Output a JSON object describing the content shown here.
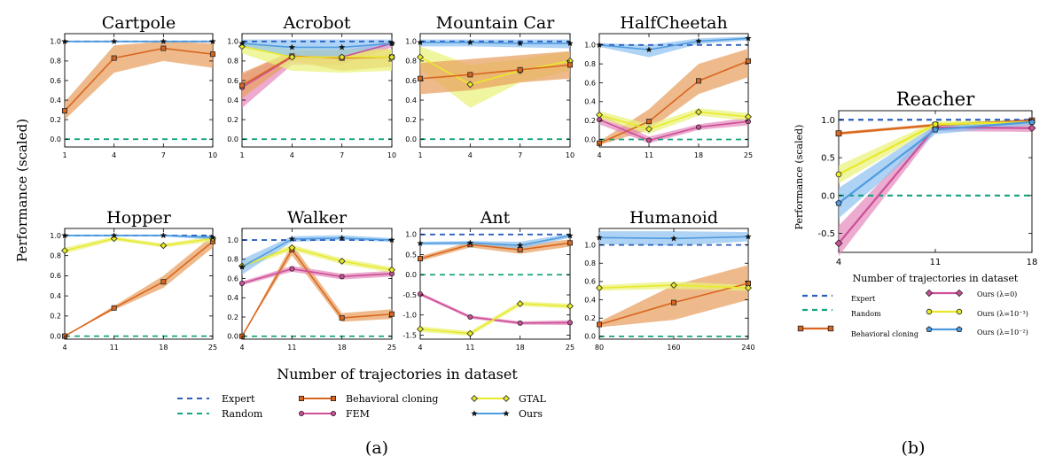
{
  "figure": {
    "panel_a_caption": "(a)",
    "panel_b_caption": "(b)",
    "ylabel_a": "Performance (scaled)",
    "xlabel_a": "Number of trajectories in dataset",
    "ylabel_b": "Performance (scaled)",
    "xlabel_b": "Number of trajectories in dataset"
  },
  "colors": {
    "expert": "#2b5fbf",
    "random": "#16a37f",
    "bc": "#d9661f",
    "bc_fill": "#e8a060",
    "fem": "#cc4f97",
    "fem_fill": "#e58bbd",
    "gtal": "#e9e92a",
    "gtal_fill": "#eaf27a",
    "ours": "#4f9be0",
    "ours_fill": "#8fc2f0",
    "ours_l0": "#cc4f97",
    "ours_l3": "#e9e92a",
    "ours_l2": "#4f9be0"
  },
  "legend_a": [
    {
      "key": "expert",
      "label": "Expert"
    },
    {
      "key": "random",
      "label": "Random"
    },
    {
      "key": "bc",
      "label": "Behavioral cloning"
    },
    {
      "key": "fem",
      "label": "FEM"
    },
    {
      "key": "gtal",
      "label": "GTAL"
    },
    {
      "key": "ours",
      "label": "Ours"
    }
  ],
  "legend_b": [
    {
      "key": "expert",
      "label": "Expert"
    },
    {
      "key": "random",
      "label": "Random"
    },
    {
      "key": "bc",
      "label": "Behavioral cloning"
    },
    {
      "key": "ours_l0",
      "label": "Ours (λ=0)"
    },
    {
      "key": "ours_l3",
      "label": "Ours (λ=10⁻³)"
    },
    {
      "key": "ours_l2",
      "label": "Ours (λ=10⁻²)"
    }
  ],
  "chart_data": [
    {
      "type": "line",
      "title": "Cartpole",
      "x": [
        1,
        4,
        7,
        10
      ],
      "xticks": [
        "1",
        "4",
        "7",
        "10"
      ],
      "ylim": [
        -0.08,
        1.08
      ],
      "yticks": [
        0.0,
        0.2,
        0.4,
        0.6,
        0.8,
        1.0
      ],
      "expert": 1.0,
      "random": 0.0,
      "series": [
        {
          "key": "bc",
          "values": [
            0.29,
            0.83,
            0.93,
            0.87
          ],
          "lo": [
            0.2,
            0.68,
            0.8,
            0.73
          ],
          "hi": [
            0.38,
            0.96,
            1.0,
            0.98
          ],
          "marker": "square"
        },
        {
          "key": "ours",
          "values": [
            1.0,
            1.0,
            1.0,
            1.0
          ],
          "lo": [
            0.99,
            0.99,
            0.99,
            0.99
          ],
          "hi": [
            1.01,
            1.01,
            1.01,
            1.01
          ],
          "marker": "star"
        }
      ]
    },
    {
      "type": "line",
      "title": "Acrobot",
      "x": [
        1,
        4,
        7,
        10
      ],
      "xticks": [
        "1",
        "4",
        "7",
        "10"
      ],
      "ylim": [
        -0.08,
        1.08
      ],
      "yticks": [
        0.0,
        0.2,
        0.4,
        0.6,
        0.8,
        1.0
      ],
      "expert": 1.0,
      "random": 0.0,
      "series": [
        {
          "key": "fem",
          "values": [
            0.53,
            0.84,
            0.84,
            0.98
          ],
          "lo": [
            0.32,
            0.76,
            0.76,
            0.94
          ],
          "hi": [
            0.66,
            0.9,
            0.9,
            1.01
          ],
          "marker": "circle"
        },
        {
          "key": "bc",
          "values": [
            0.55,
            0.85,
            0.83,
            0.84
          ],
          "lo": [
            0.42,
            0.8,
            0.7,
            0.74
          ],
          "hi": [
            0.68,
            0.9,
            0.92,
            0.92
          ],
          "marker": "square"
        },
        {
          "key": "gtal",
          "values": [
            0.95,
            0.84,
            0.84,
            0.84
          ],
          "lo": [
            0.88,
            0.7,
            0.68,
            0.7
          ],
          "hi": [
            1.0,
            0.92,
            0.92,
            0.92
          ],
          "marker": "diamond"
        },
        {
          "key": "ours",
          "values": [
            0.98,
            0.94,
            0.94,
            0.98
          ],
          "lo": [
            0.94,
            0.84,
            0.84,
            0.96
          ],
          "hi": [
            1.02,
            1.02,
            1.02,
            1.02
          ],
          "marker": "star"
        }
      ]
    },
    {
      "type": "line",
      "title": "Mountain Car",
      "x": [
        1,
        4,
        7,
        10
      ],
      "xticks": [
        "1",
        "4",
        "7",
        "10"
      ],
      "ylim": [
        -0.08,
        1.08
      ],
      "yticks": [
        0.0,
        0.2,
        0.4,
        0.6,
        0.8,
        1.0
      ],
      "expert": 1.0,
      "random": 0.0,
      "series": [
        {
          "key": "gtal",
          "values": [
            0.84,
            0.56,
            0.7,
            0.8
          ],
          "lo": [
            0.72,
            0.32,
            0.58,
            0.7
          ],
          "hi": [
            0.95,
            0.76,
            0.82,
            0.9
          ],
          "marker": "diamond"
        },
        {
          "key": "bc",
          "values": [
            0.62,
            0.66,
            0.71,
            0.76
          ],
          "lo": [
            0.46,
            0.5,
            0.58,
            0.62
          ],
          "hi": [
            0.78,
            0.82,
            0.86,
            0.9
          ],
          "marker": "square"
        },
        {
          "key": "ours",
          "values": [
            0.99,
            0.99,
            0.98,
            0.98
          ],
          "lo": [
            0.95,
            0.95,
            0.94,
            0.93
          ],
          "hi": [
            1.02,
            1.02,
            1.02,
            1.02
          ],
          "marker": "star"
        }
      ]
    },
    {
      "type": "line",
      "title": "HalfCheetah",
      "x": [
        4,
        11,
        18,
        25
      ],
      "xticks": [
        "4",
        "11",
        "18",
        "25"
      ],
      "ylim": [
        -0.08,
        1.12
      ],
      "yticks": [
        0.0,
        0.2,
        0.4,
        0.6,
        0.8,
        1.0
      ],
      "expert": 1.0,
      "random": 0.0,
      "series": [
        {
          "key": "bc",
          "values": [
            -0.04,
            0.19,
            0.62,
            0.83
          ],
          "lo": [
            -0.06,
            0.1,
            0.48,
            0.66
          ],
          "hi": [
            -0.02,
            0.32,
            0.8,
            0.96
          ],
          "marker": "square"
        },
        {
          "key": "fem",
          "values": [
            0.21,
            -0.01,
            0.13,
            0.19
          ],
          "lo": [
            0.16,
            -0.04,
            0.1,
            0.15
          ],
          "hi": [
            0.27,
            0.03,
            0.16,
            0.23
          ],
          "marker": "circle"
        },
        {
          "key": "gtal",
          "values": [
            0.26,
            0.11,
            0.29,
            0.24
          ],
          "lo": [
            0.22,
            0.06,
            0.25,
            0.2
          ],
          "hi": [
            0.3,
            0.16,
            0.33,
            0.28
          ],
          "marker": "diamond"
        },
        {
          "key": "ours",
          "values": [
            1.0,
            0.95,
            1.04,
            1.07
          ],
          "lo": [
            0.98,
            0.87,
            1.01,
            1.05
          ],
          "hi": [
            1.02,
            1.0,
            1.07,
            1.09
          ],
          "marker": "star"
        }
      ]
    },
    {
      "type": "line",
      "title": "Hopper",
      "x": [
        4,
        11,
        18,
        25
      ],
      "xticks": [
        "4",
        "11",
        "18",
        "25"
      ],
      "ylim": [
        -0.03,
        1.07
      ],
      "yticks": [
        0.0,
        0.2,
        0.4,
        0.6,
        0.8,
        1.0
      ],
      "expert": 1.0,
      "random": 0.0,
      "series": [
        {
          "key": "bc",
          "values": [
            0.0,
            0.28,
            0.54,
            0.94
          ],
          "lo": [
            0.0,
            0.26,
            0.48,
            0.88
          ],
          "hi": [
            0.0,
            0.3,
            0.6,
            1.0
          ],
          "marker": "square"
        },
        {
          "key": "gtal",
          "values": [
            0.85,
            0.97,
            0.9,
            0.97
          ],
          "lo": [
            0.82,
            0.95,
            0.88,
            0.94
          ],
          "hi": [
            0.88,
            0.99,
            0.92,
            0.99
          ],
          "marker": "diamond"
        },
        {
          "key": "ours",
          "values": [
            1.0,
            1.0,
            1.0,
            0.98
          ],
          "lo": [
            0.99,
            0.99,
            0.99,
            0.96
          ],
          "hi": [
            1.01,
            1.01,
            1.01,
            1.0
          ],
          "marker": "star"
        }
      ]
    },
    {
      "type": "line",
      "title": "Walker",
      "x": [
        4,
        11,
        18,
        25
      ],
      "xticks": [
        "4",
        "11",
        "18",
        "25"
      ],
      "ylim": [
        -0.03,
        1.12
      ],
      "yticks": [
        0.0,
        0.2,
        0.4,
        0.6,
        0.8,
        1.0
      ],
      "expert": 1.0,
      "random": 0.0,
      "series": [
        {
          "key": "bc",
          "values": [
            0.0,
            0.9,
            0.19,
            0.23
          ],
          "lo": [
            0.0,
            0.84,
            0.15,
            0.18
          ],
          "hi": [
            0.0,
            0.96,
            0.24,
            0.28
          ],
          "marker": "square"
        },
        {
          "key": "fem",
          "values": [
            0.55,
            0.7,
            0.62,
            0.65
          ],
          "lo": [
            0.53,
            0.67,
            0.59,
            0.62
          ],
          "hi": [
            0.57,
            0.73,
            0.65,
            0.68
          ],
          "marker": "circle"
        },
        {
          "key": "gtal",
          "values": [
            0.73,
            0.92,
            0.78,
            0.69
          ],
          "lo": [
            0.7,
            0.89,
            0.75,
            0.66
          ],
          "hi": [
            0.76,
            0.95,
            0.81,
            0.72
          ],
          "marker": "diamond"
        },
        {
          "key": "ours",
          "values": [
            0.72,
            1.01,
            1.02,
            1.0
          ],
          "lo": [
            0.64,
            0.98,
            1.0,
            0.98
          ],
          "hi": [
            0.8,
            1.04,
            1.05,
            1.02
          ],
          "marker": "star"
        }
      ]
    },
    {
      "type": "line",
      "title": "Ant",
      "x": [
        4,
        11,
        18,
        25
      ],
      "xticks": [
        "4",
        "11",
        "18",
        "25"
      ],
      "ylim": [
        -1.6,
        1.15
      ],
      "yticks": [
        -1.5,
        -1.0,
        -0.5,
        0.0,
        0.5,
        1.0
      ],
      "expert": 1.0,
      "random": 0.0,
      "series": [
        {
          "key": "fem",
          "values": [
            -0.48,
            -1.05,
            -1.2,
            -1.19
          ],
          "lo": [
            -0.52,
            -1.09,
            -1.24,
            -1.25
          ],
          "hi": [
            -0.44,
            -1.01,
            -1.16,
            -1.13
          ],
          "marker": "circle"
        },
        {
          "key": "gtal",
          "values": [
            -1.35,
            -1.46,
            -0.72,
            -0.78
          ],
          "lo": [
            -1.42,
            -1.52,
            -0.78,
            -0.84
          ],
          "hi": [
            -1.28,
            -1.4,
            -0.66,
            -0.72
          ],
          "marker": "diamond"
        },
        {
          "key": "bc",
          "values": [
            0.4,
            0.75,
            0.62,
            0.79
          ],
          "lo": [
            0.34,
            0.68,
            0.52,
            0.7
          ],
          "hi": [
            0.46,
            0.82,
            0.72,
            0.88
          ],
          "marker": "square"
        },
        {
          "key": "ours",
          "values": [
            0.78,
            0.79,
            0.73,
            0.97
          ],
          "lo": [
            0.74,
            0.74,
            0.64,
            0.92
          ],
          "hi": [
            0.82,
            0.84,
            0.82,
            1.02
          ],
          "marker": "star"
        }
      ]
    },
    {
      "type": "line",
      "title": "Humanoid",
      "x": [
        80,
        160,
        240
      ],
      "xticks": [
        "80",
        "160",
        "240"
      ],
      "ylim": [
        -0.03,
        1.18
      ],
      "yticks": [
        0.0,
        0.2,
        0.4,
        0.6,
        0.8,
        1.0
      ],
      "expert": 1.0,
      "random": 0.0,
      "series": [
        {
          "key": "bc",
          "values": [
            0.13,
            0.37,
            0.58
          ],
          "lo": [
            0.1,
            0.18,
            0.4
          ],
          "hi": [
            0.16,
            0.56,
            0.78
          ],
          "marker": "square"
        },
        {
          "key": "gtal",
          "values": [
            0.53,
            0.56,
            0.53
          ],
          "lo": [
            0.5,
            0.52,
            0.5
          ],
          "hi": [
            0.56,
            0.6,
            0.56
          ],
          "marker": "diamond"
        },
        {
          "key": "ours",
          "values": [
            1.08,
            1.07,
            1.09
          ],
          "lo": [
            1.01,
            0.99,
            1.04
          ],
          "hi": [
            1.15,
            1.15,
            1.14
          ],
          "marker": "star"
        }
      ]
    },
    {
      "type": "line",
      "title": "Reacher",
      "x": [
        4,
        11,
        18
      ],
      "xticks": [
        "4",
        "11",
        "18"
      ],
      "ylim": [
        -0.75,
        1.12
      ],
      "yticks": [
        -0.5,
        0.0,
        0.5,
        1.0
      ],
      "expert": 1.0,
      "random": 0.0,
      "series": [
        {
          "key": "bc",
          "values": [
            0.82,
            0.93,
            0.99
          ],
          "lo": [
            0.8,
            0.91,
            0.97
          ],
          "hi": [
            0.84,
            0.95,
            1.01
          ],
          "marker": "square"
        },
        {
          "key": "ours_l0",
          "values": [
            -0.63,
            0.9,
            0.89
          ],
          "lo": [
            -0.8,
            0.85,
            0.84
          ],
          "hi": [
            -0.4,
            0.95,
            0.95
          ],
          "marker": "diamond"
        },
        {
          "key": "ours_l3",
          "values": [
            0.28,
            0.94,
            0.97
          ],
          "lo": [
            0.16,
            0.9,
            0.94
          ],
          "hi": [
            0.4,
            0.98,
            1.0
          ],
          "marker": "circle"
        },
        {
          "key": "ours_l2",
          "values": [
            -0.1,
            0.87,
            0.97
          ],
          "lo": [
            -0.3,
            0.81,
            0.93
          ],
          "hi": [
            0.1,
            0.93,
            1.01
          ],
          "marker": "pentagon"
        }
      ]
    }
  ]
}
